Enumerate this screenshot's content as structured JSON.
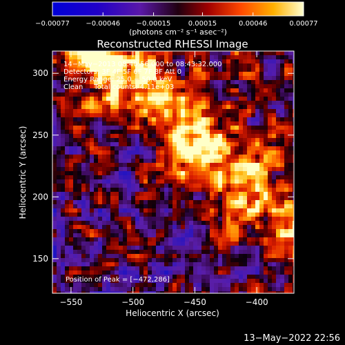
{
  "chart_data": {
    "type": "heatmap",
    "title": "Reconstructed RHESSI Image",
    "xlabel": "Heliocentric X (arcsec)",
    "ylabel": "Heliocentric Y (arcsec)",
    "xlim": [
      -565,
      -370
    ],
    "ylim": [
      122,
      318
    ],
    "x_ticks": [
      -550,
      -500,
      -450,
      -400
    ],
    "x_tick_labels": [
      "−550",
      "−500",
      "−450",
      "−400"
    ],
    "y_ticks": [
      150,
      200,
      250,
      300
    ],
    "y_tick_labels": [
      "150",
      "200",
      "250",
      "300"
    ],
    "colorbar": {
      "colormap": "red-temperature with blue/purple negatives",
      "range": [
        -0.00077,
        0.00077
      ],
      "ticks": [
        -0.00077,
        -0.00046,
        -0.00015,
        0.00015,
        0.00046,
        0.00077
      ],
      "tick_labels": [
        "−0.00077",
        "−0.00046",
        "−0.00015",
        "0.00015",
        "0.00046",
        "0.00077"
      ],
      "unit_label": "(photons cm⁻² s⁻¹ asec⁻²)"
    },
    "annotations": [
      "14−May−2013 08:40:56.000 to 08:43:32.000",
      "Detectors: 3F 4F 5F 6F 7F 8F Att 0",
      "Energy Range: 25.0 − 50.0 keV",
      "Clean     Total counts: 4.11e+03"
    ],
    "peak_label": "Position of Peak = [−472,286]",
    "peak": [
      -472,
      286
    ],
    "grid": false,
    "legend": "colorbar top"
  },
  "footer": {
    "timestamp": "13−May−2022 22:56"
  }
}
